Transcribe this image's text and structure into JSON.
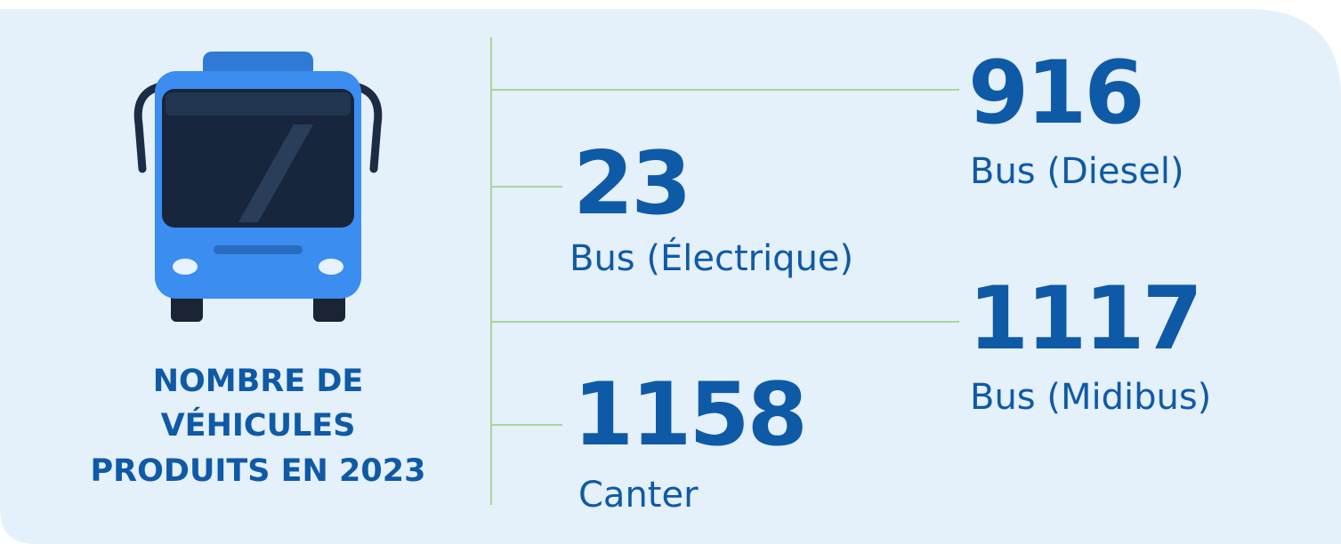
{
  "title_lines": [
    "NOMBRE DE",
    "VÉHICULES",
    "PRODUITS EN 2023"
  ],
  "stats": [
    {
      "value": "916",
      "label": "Bus (Diesel)"
    },
    {
      "value": "23",
      "label": "Bus (Électrique)"
    },
    {
      "value": "1117",
      "label": "Bus (Midibus)"
    },
    {
      "value": "1158",
      "label": "Canter"
    }
  ]
}
